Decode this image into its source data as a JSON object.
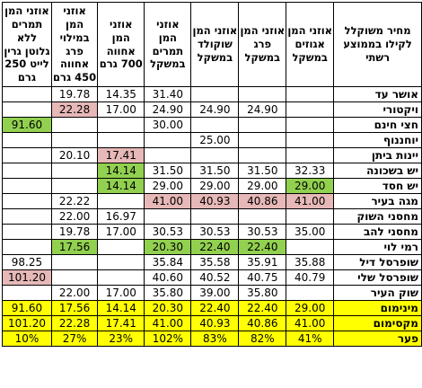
{
  "headers": [
    "מחיר משוקלל לקילו בממוצע רשתי",
    "אוזני המן אגוזים במשקל",
    "אוזני המן פרג במשקל",
    "אוזני המן שוקולד במשקל",
    "אוזני המן תמרים במשקל",
    "אוזני המן אחווה 700 גרם",
    "אוזני המן במילוי פרג אחווה 450 גרם",
    "אוזני המן תמרים ללא גלוטן גרין לייט 250 גרם"
  ],
  "rows": [
    {
      "store": "אושר עד",
      "values": [
        "",
        "",
        "",
        "31.40",
        "14.35",
        "19.78",
        ""
      ],
      "hl": [
        "",
        "",
        "",
        "",
        "",
        "",
        ""
      ]
    },
    {
      "store": "ויקטורי",
      "values": [
        "",
        "24.90",
        "24.90",
        "24.90",
        "17.00",
        "22.28",
        ""
      ],
      "hl": [
        "",
        "",
        "",
        "",
        "",
        "red",
        ""
      ]
    },
    {
      "store": "חצי חינם",
      "values": [
        "",
        "",
        "",
        "30.00",
        "",
        "",
        "91.60"
      ],
      "hl": [
        "",
        "",
        "",
        "",
        "",
        "",
        "green"
      ]
    },
    {
      "store": "יוחננוף",
      "values": [
        "",
        "",
        "25.00",
        "",
        "",
        "",
        ""
      ],
      "hl": [
        "",
        "",
        "",
        "",
        "",
        "",
        ""
      ]
    },
    {
      "store": "יינות ביתן",
      "values": [
        "",
        "",
        "",
        "",
        "17.41",
        "20.10",
        ""
      ],
      "hl": [
        "",
        "",
        "",
        "",
        "red",
        "",
        ""
      ]
    },
    {
      "store": "יש בשכונה",
      "values": [
        "32.33",
        "31.50",
        "31.50",
        "31.50",
        "14.14",
        "",
        ""
      ],
      "hl": [
        "",
        "",
        "",
        "",
        "green",
        "",
        ""
      ]
    },
    {
      "store": "יש חסד",
      "values": [
        "29.00",
        "29.00",
        "29.00",
        "29.00",
        "14.14",
        "",
        ""
      ],
      "hl": [
        "green",
        "",
        "",
        "",
        "green",
        "",
        ""
      ]
    },
    {
      "store": "מגה בעיר",
      "values": [
        "41.00",
        "40.86",
        "40.93",
        "41.00",
        "",
        "22.22",
        ""
      ],
      "hl": [
        "red",
        "red",
        "red",
        "red",
        "",
        "",
        ""
      ]
    },
    {
      "store": "מחסני השוק",
      "values": [
        "",
        "",
        "",
        "",
        "16.97",
        "22.00",
        ""
      ],
      "hl": [
        "",
        "",
        "",
        "",
        "",
        "",
        ""
      ]
    },
    {
      "store": "מחסני להב",
      "values": [
        "35.00",
        "30.53",
        "30.53",
        "30.53",
        "17.00",
        "19.78",
        ""
      ],
      "hl": [
        "",
        "",
        "",
        "",
        "",
        "",
        ""
      ]
    },
    {
      "store": "רמי לוי",
      "values": [
        "",
        "22.40",
        "22.40",
        "20.30",
        "",
        "17.56",
        ""
      ],
      "hl": [
        "",
        "green",
        "green",
        "green",
        "",
        "green",
        ""
      ]
    },
    {
      "store": "שופרסל דיל",
      "values": [
        "35.88",
        "35.91",
        "35.58",
        "35.84",
        "",
        "",
        "98.25"
      ],
      "hl": [
        "",
        "",
        "",
        "",
        "",
        "",
        ""
      ]
    },
    {
      "store": "שופרסל שלי",
      "values": [
        "40.79",
        "40.75",
        "40.52",
        "40.60",
        "",
        "",
        "101.20"
      ],
      "hl": [
        "",
        "",
        "",
        "",
        "",
        "",
        "red"
      ]
    },
    {
      "store": "שוק העיר",
      "values": [
        "",
        "35.80",
        "39.00",
        "35.80",
        "17.00",
        "22.00",
        ""
      ],
      "hl": [
        "",
        "",
        "",
        "",
        "",
        "",
        ""
      ]
    }
  ],
  "summary": [
    {
      "label": "מינימום",
      "values": [
        "29.00",
        "22.40",
        "22.40",
        "20.30",
        "14.14",
        "17.56",
        "91.60"
      ]
    },
    {
      "label": "מקסימום",
      "values": [
        "41.00",
        "40.86",
        "40.93",
        "41.00",
        "17.41",
        "22.28",
        "101.20"
      ]
    },
    {
      "label": "פער",
      "values": [
        "41%",
        "82%",
        "83%",
        "102%",
        "23%",
        "27%",
        "10%"
      ]
    }
  ],
  "colors": {
    "min_highlight": "#92d050",
    "max_highlight": "#e6b8b7",
    "summary_fill": "#ffff00"
  }
}
